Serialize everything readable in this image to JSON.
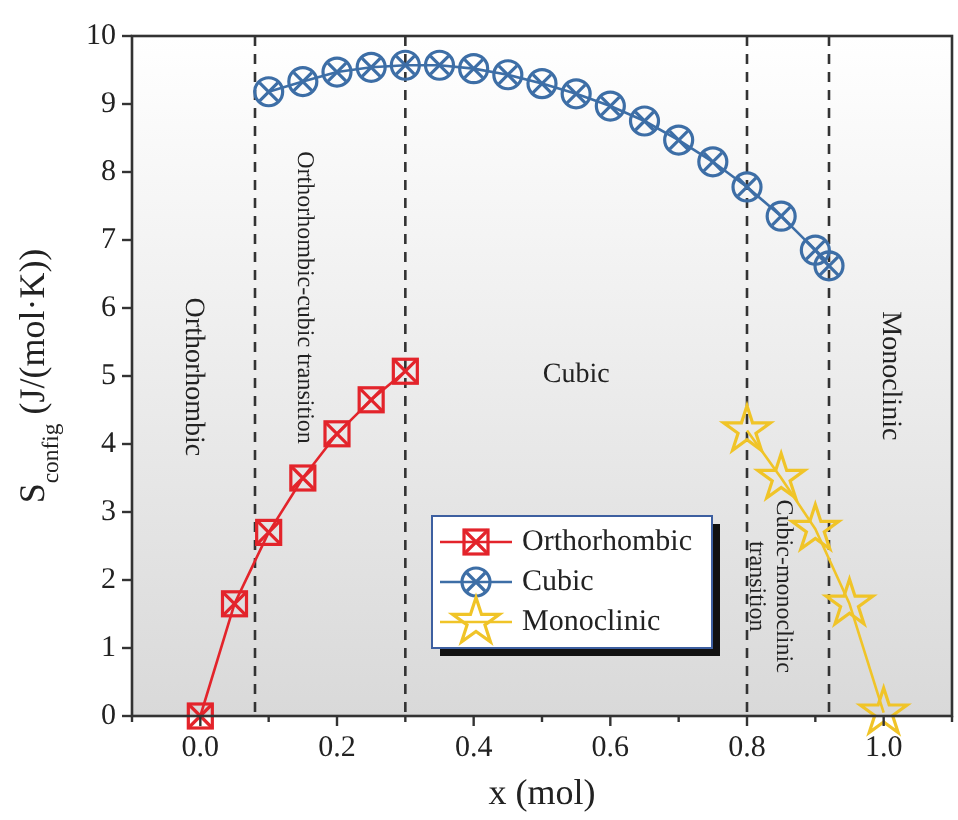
{
  "chart_data": {
    "type": "line",
    "xlabel": "x (mol)",
    "ylabel": "S$_{config}$ (J/(mol·K))",
    "xlim": [
      -0.1,
      1.1
    ],
    "ylim": [
      0,
      10
    ],
    "xticks": [
      {
        "value": -0.1,
        "label": null
      },
      {
        "value": 0,
        "label": "0.0"
      },
      {
        "value": 0.1,
        "label": null
      },
      {
        "value": 0.2,
        "label": "0.2"
      },
      {
        "value": 0.3,
        "label": null
      },
      {
        "value": 0.4,
        "label": "0.4"
      },
      {
        "value": 0.5,
        "label": null
      },
      {
        "value": 0.6,
        "label": "0.6"
      },
      {
        "value": 0.7,
        "label": null
      },
      {
        "value": 0.8,
        "label": "0.8"
      },
      {
        "value": 0.9,
        "label": null
      },
      {
        "value": 1,
        "label": "1.0"
      },
      {
        "value": 1.1,
        "label": null
      }
    ],
    "yticks": [
      0,
      1,
      2,
      3,
      4,
      5,
      6,
      7,
      8,
      9,
      10
    ],
    "grid": false,
    "legend": "bottom",
    "line_style": "solid",
    "series": [
      {
        "name": "Orthorhombic",
        "color": "#e3242b",
        "marker": "square",
        "x": [
          0,
          0.05,
          0.1,
          0.15,
          0.2,
          0.25,
          0.3
        ],
        "values": [
          0,
          1.65,
          2.7,
          3.5,
          4.15,
          4.65,
          5.07
        ]
      },
      {
        "name": "Cubic",
        "color": "#3d6ea6",
        "marker": "circle",
        "x": [
          0.1,
          0.15,
          0.2,
          0.25,
          0.3,
          0.35,
          0.4,
          0.45,
          0.5,
          0.55,
          0.6,
          0.65,
          0.7,
          0.75,
          0.8,
          0.85,
          0.9,
          0.92
        ],
        "values": [
          9.18,
          9.33,
          9.47,
          9.54,
          9.57,
          9.57,
          9.52,
          9.43,
          9.3,
          9.15,
          8.97,
          8.75,
          8.47,
          8.15,
          7.78,
          7.35,
          6.85,
          6.62
        ]
      },
      {
        "name": "Monoclinic",
        "color": "#f0c428",
        "marker": "star",
        "x": [
          0.8,
          0.85,
          0.9,
          0.95,
          1.0
        ],
        "values": [
          4.2,
          3.5,
          2.75,
          1.65,
          0.05
        ]
      }
    ],
    "ref_lines": [
      {
        "axis": "x",
        "value": 0.08,
        "line_style": "dashed"
      },
      {
        "axis": "x",
        "value": 0.3,
        "line_style": "dashed"
      },
      {
        "axis": "x",
        "value": 0.8,
        "line_style": "dashed"
      },
      {
        "axis": "x",
        "value": 0.92,
        "line_style": "dashed"
      }
    ],
    "annotations": [
      "Orthorhombic",
      "Orthorhombic-cubic transition",
      "Cubic",
      "Cubic-monoclinic transition",
      "Monoclinic"
    ]
  }
}
